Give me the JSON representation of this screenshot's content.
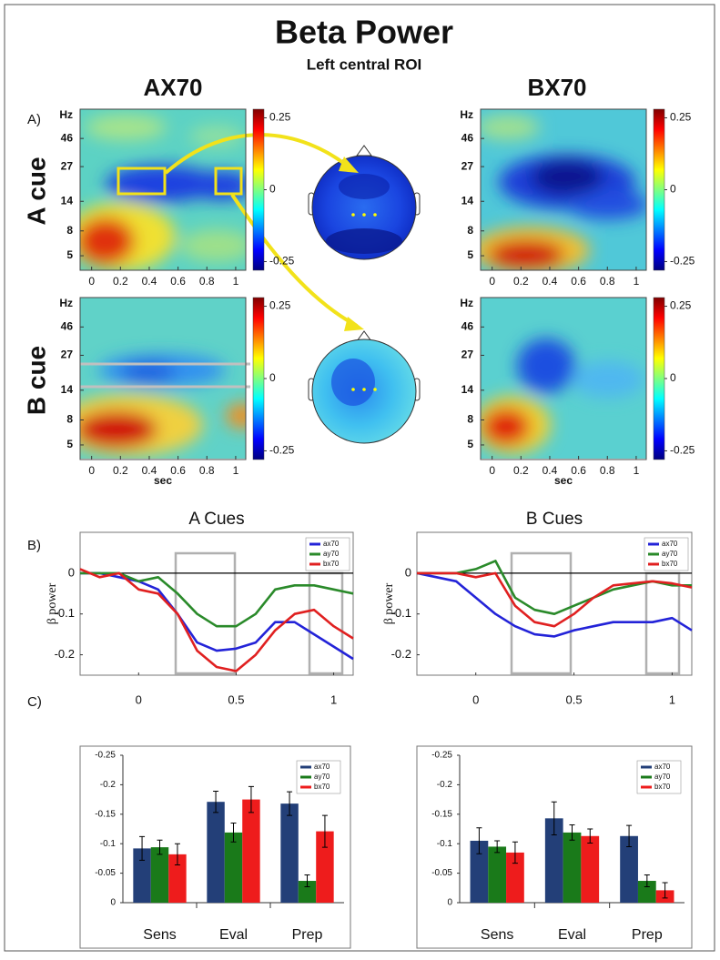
{
  "title": "Beta Power",
  "subtitle": "Left central ROI",
  "column_labels": [
    "AX70",
    "BX70"
  ],
  "row_labels": [
    "A cue",
    "B cue"
  ],
  "panel_labels": [
    "A)",
    "B)",
    "C)"
  ],
  "chart_data": [
    {
      "type": "heatmap",
      "ylabel": "Hz",
      "log_y": true,
      "ylim": [
        3.8,
        80
      ],
      "yticks": [
        5,
        8,
        14,
        27,
        46
      ],
      "xlim": [
        -0.08,
        1.07
      ],
      "xticks": [
        0,
        0.2,
        0.4,
        0.6,
        0.8,
        1
      ],
      "clim": [
        -0.28,
        0.28
      ],
      "cticks": [
        -0.25,
        0,
        0.25
      ]
    },
    {
      "type": "heatmap",
      "ylabel": "Hz",
      "log_y": true,
      "ylim": [
        3.8,
        80
      ],
      "yticks": [
        5,
        8,
        14,
        27,
        46
      ],
      "xlim": [
        -0.08,
        1.07
      ],
      "xticks": [
        0,
        0.2,
        0.4,
        0.6,
        0.8,
        1
      ],
      "clim": [
        -0.28,
        0.28
      ],
      "cticks": [
        -0.25,
        0,
        0.25
      ]
    },
    {
      "type": "heatmap",
      "ylabel": "Hz",
      "xlabel": "sec",
      "log_y": true,
      "ylim": [
        3.8,
        80
      ],
      "yticks": [
        5,
        8,
        14,
        27,
        46
      ],
      "xlim": [
        -0.08,
        1.07
      ],
      "xticks": [
        0,
        0.2,
        0.4,
        0.6,
        0.8,
        1
      ],
      "clim": [
        -0.28,
        0.28
      ],
      "cticks": [
        -0.25,
        0,
        0.25
      ]
    },
    {
      "type": "heatmap",
      "ylabel": "Hz",
      "xlabel": "sec",
      "log_y": true,
      "ylim": [
        3.8,
        80
      ],
      "yticks": [
        5,
        8,
        14,
        27,
        46
      ],
      "xlim": [
        -0.08,
        1.07
      ],
      "xticks": [
        0,
        0.2,
        0.4,
        0.6,
        0.8,
        1
      ],
      "clim": [
        -0.28,
        0.28
      ],
      "cticks": [
        -0.25,
        0,
        0.25
      ]
    },
    {
      "type": "line",
      "title": "A Cues",
      "ylabel": "β power",
      "x": [
        -0.3,
        -0.2,
        -0.1,
        0,
        0.1,
        0.2,
        0.3,
        0.4,
        0.5,
        0.6,
        0.7,
        0.8,
        0.9,
        1.0,
        1.1
      ],
      "series": [
        {
          "name": "ax70",
          "color": "#2323d8",
          "values": [
            0,
            0,
            -0.01,
            -0.02,
            -0.04,
            -0.1,
            -0.17,
            -0.19,
            -0.185,
            -0.17,
            -0.12,
            -0.12,
            -0.15,
            -0.18,
            -0.21
          ]
        },
        {
          "name": "ay70",
          "color": "#2a8a2a",
          "values": [
            0,
            0,
            0,
            -0.02,
            -0.01,
            -0.05,
            -0.1,
            -0.13,
            -0.13,
            -0.1,
            -0.04,
            -0.03,
            -0.03,
            -0.04,
            -0.05
          ]
        },
        {
          "name": "bx70",
          "color": "#e02020",
          "values": [
            0.01,
            -0.01,
            0,
            -0.04,
            -0.05,
            -0.1,
            -0.19,
            -0.23,
            -0.24,
            -0.2,
            -0.14,
            -0.1,
            -0.09,
            -0.13,
            -0.16
          ]
        }
      ],
      "xlim": [
        -0.3,
        1.1
      ],
      "ylim": [
        -0.25,
        0.1
      ],
      "xticks": [
        0,
        0.5,
        1
      ],
      "yticks": [
        -0.2,
        -0.1,
        0
      ],
      "legend": "upper right",
      "zero_line": true
    },
    {
      "type": "line",
      "title": "B Cues",
      "ylabel": "β power",
      "x": [
        -0.3,
        -0.2,
        -0.1,
        0,
        0.1,
        0.2,
        0.3,
        0.4,
        0.5,
        0.6,
        0.7,
        0.8,
        0.9,
        1.0,
        1.1
      ],
      "series": [
        {
          "name": "ax70",
          "color": "#2323d8",
          "values": [
            0,
            -0.01,
            -0.02,
            -0.06,
            -0.1,
            -0.13,
            -0.15,
            -0.155,
            -0.14,
            -0.13,
            -0.12,
            -0.12,
            -0.12,
            -0.11,
            -0.14
          ]
        },
        {
          "name": "ay70",
          "color": "#2a8a2a",
          "values": [
            0,
            0,
            0,
            0.01,
            0.03,
            -0.06,
            -0.09,
            -0.1,
            -0.08,
            -0.06,
            -0.04,
            -0.03,
            -0.02,
            -0.03,
            -0.03
          ]
        },
        {
          "name": "bx70",
          "color": "#e02020",
          "values": [
            0,
            0,
            0,
            -0.01,
            0,
            -0.08,
            -0.12,
            -0.13,
            -0.1,
            -0.06,
            -0.03,
            -0.025,
            -0.02,
            -0.025,
            -0.035
          ]
        }
      ],
      "xlim": [
        -0.3,
        1.1
      ],
      "ylim": [
        -0.25,
        0.1
      ],
      "xticks": [
        0,
        0.5,
        1
      ],
      "yticks": [
        -0.2,
        -0.1,
        0
      ],
      "legend": "upper right",
      "zero_line": true
    },
    {
      "type": "bar",
      "categories": [
        "Sens",
        "Eval",
        "Prep"
      ],
      "series": [
        {
          "name": "ax70",
          "color": "#233f78",
          "values": [
            -0.092,
            -0.171,
            -0.168
          ],
          "errors": [
            0.02,
            0.018,
            0.02
          ]
        },
        {
          "name": "ay70",
          "color": "#1a7a1a",
          "values": [
            -0.094,
            -0.119,
            -0.037
          ],
          "errors": [
            0.012,
            0.016,
            0.01
          ]
        },
        {
          "name": "bx70",
          "color": "#ee1c1c",
          "values": [
            -0.082,
            -0.175,
            -0.121
          ],
          "errors": [
            0.018,
            0.022,
            0.027
          ]
        }
      ],
      "ylim": [
        0,
        -0.25
      ],
      "yticks": [
        0,
        -0.05,
        -0.1,
        -0.15,
        -0.2,
        -0.25
      ],
      "legend": "upper right"
    },
    {
      "type": "bar",
      "categories": [
        "Sens",
        "Eval",
        "Prep"
      ],
      "series": [
        {
          "name": "ax70",
          "color": "#233f78",
          "values": [
            -0.105,
            -0.143,
            -0.113
          ],
          "errors": [
            0.022,
            0.028,
            0.018
          ]
        },
        {
          "name": "ay70",
          "color": "#1a7a1a",
          "values": [
            -0.095,
            -0.119,
            -0.037
          ],
          "errors": [
            0.01,
            0.013,
            0.01
          ]
        },
        {
          "name": "bx70",
          "color": "#ee1c1c",
          "values": [
            -0.085,
            -0.113,
            -0.021
          ],
          "errors": [
            0.018,
            0.012,
            0.013
          ]
        }
      ],
      "ylim": [
        0,
        -0.25
      ],
      "yticks": [
        0,
        -0.05,
        -0.1,
        -0.15,
        -0.2,
        -0.25
      ],
      "legend": "upper right"
    }
  ]
}
